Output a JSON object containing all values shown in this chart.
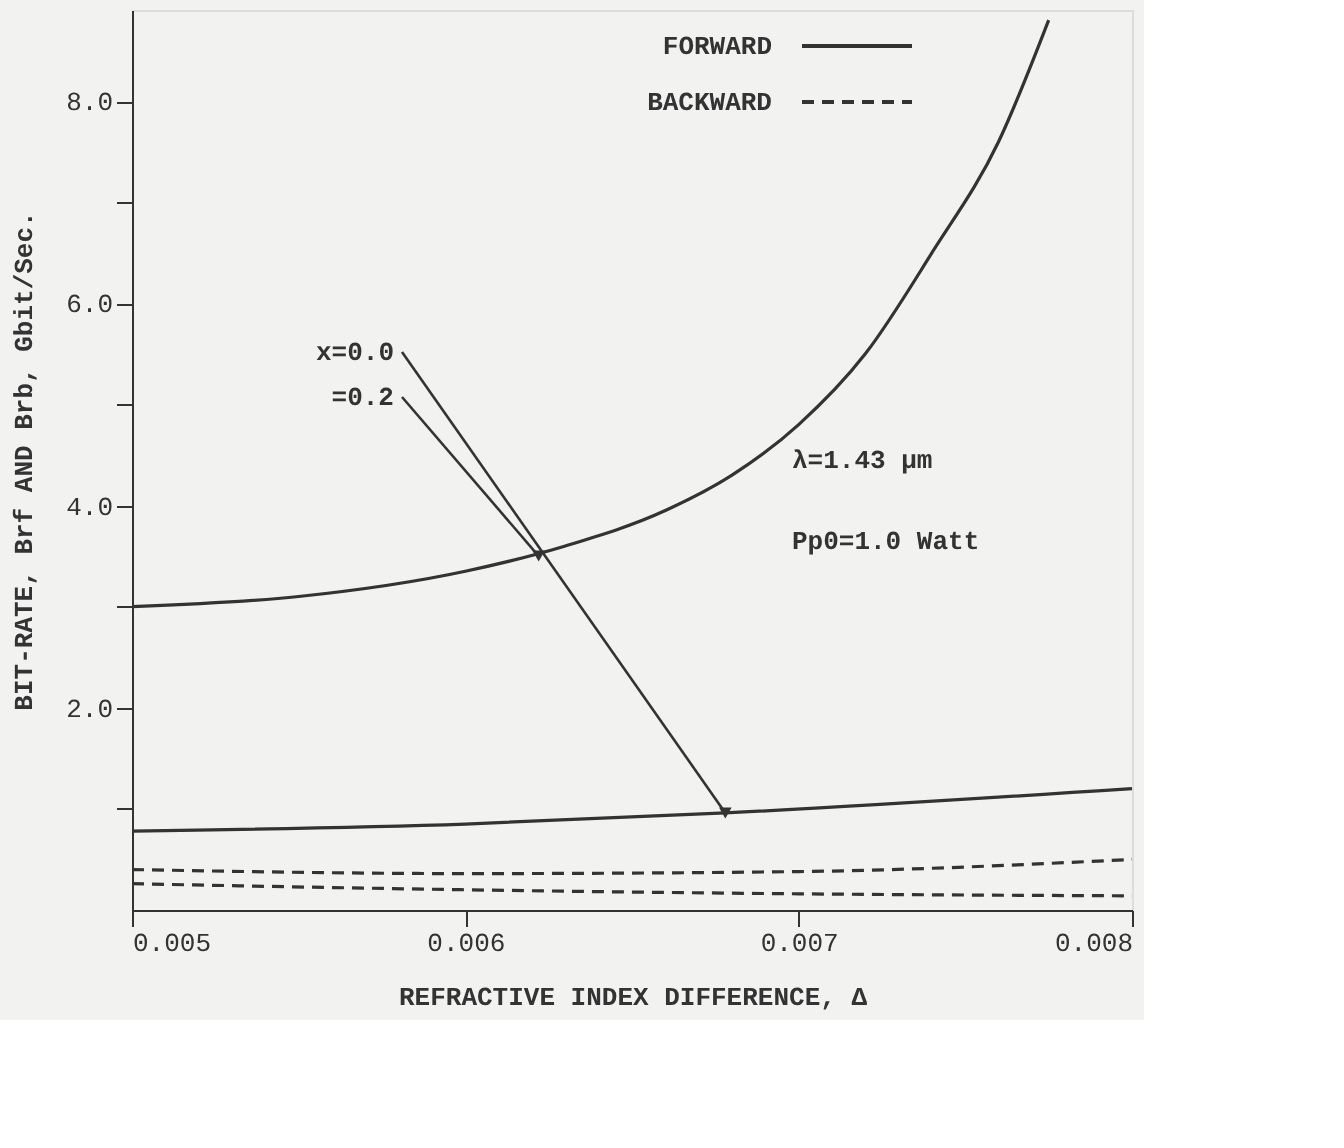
{
  "chart_data": {
    "type": "line",
    "xlabel": "REFRACTIVE INDEX DIFFERENCE, Δ",
    "ylabel": "BIT-RATE, Brf AND Brb, Gbit/Sec.",
    "xlim": [
      0.005,
      0.008
    ],
    "xticks": [
      {
        "value": 0.005,
        "label": "0.005"
      },
      {
        "value": 0.006,
        "label": "0.006"
      },
      {
        "value": 0.007,
        "label": "0.007"
      },
      {
        "value": 0.008,
        "label": "0.008"
      }
    ],
    "ylim": [
      0,
      8.9
    ],
    "yticks": [
      {
        "value": 1,
        "label": null
      },
      {
        "value": 2,
        "label": "2.0"
      },
      {
        "value": 3,
        "label": null
      },
      {
        "value": 4,
        "label": "4.0"
      },
      {
        "value": 5,
        "label": null
      },
      {
        "value": 6,
        "label": "6.0"
      },
      {
        "value": 7,
        "label": null
      },
      {
        "value": 8,
        "label": "8.0"
      }
    ],
    "grid": false,
    "legend": "top",
    "marker": "none",
    "series": [
      {
        "name": "FORWARD",
        "color": "#333333",
        "line_style": "solid",
        "x": [
          0.005,
          0.0055,
          0.006,
          0.0063,
          0.0066,
          0.0068,
          0.007,
          0.0072,
          0.0074,
          0.0076,
          0.00775
        ],
        "values": [
          3.0,
          3.1,
          3.35,
          3.6,
          3.95,
          4.3,
          4.8,
          5.5,
          6.5,
          7.6,
          8.8
        ]
      },
      {
        "color": "#333333",
        "line_style": "solid",
        "x": [
          0.005,
          0.006,
          0.00678,
          0.008
        ],
        "values": [
          0.78,
          0.85,
          0.96,
          1.2
        ]
      },
      {
        "name": "BACKWARD",
        "color": "#333333",
        "line_style": "dashed",
        "x": [
          0.005,
          0.006,
          0.007,
          0.008
        ],
        "values": [
          0.4,
          0.36,
          0.38,
          0.5
        ]
      },
      {
        "color": "#333333",
        "line_style": "dashed",
        "x": [
          0.005,
          0.006,
          0.007,
          0.008
        ],
        "values": [
          0.26,
          0.2,
          0.16,
          0.14
        ]
      }
    ],
    "annotations": [
      {
        "text": "x=0.0",
        "x": 0.00678,
        "y": 0.96
      },
      {
        "text": "=0.2",
        "x": 0.00622,
        "y": 3.5
      },
      "λ=1.43 μm",
      "Pp0=1.0 Watt"
    ]
  }
}
